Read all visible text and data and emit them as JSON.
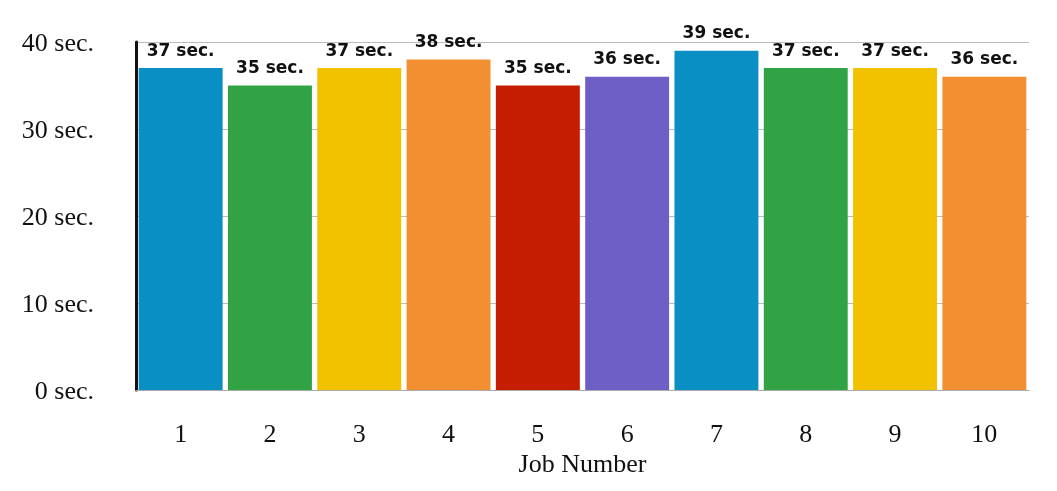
{
  "chart_data": {
    "type": "bar",
    "xlabel": "Job Number",
    "categories": [
      "1",
      "2",
      "3",
      "4",
      "5",
      "6",
      "7",
      "8",
      "9",
      "10"
    ],
    "values": [
      37,
      35,
      37,
      38,
      35,
      36,
      39,
      37,
      37,
      36
    ],
    "colors": [
      "#0a8fc4",
      "#31a345",
      "#f2c200",
      "#f29031",
      "#c41d00",
      "#6e5fc7",
      "#0a8fc4",
      "#31a345",
      "#f2c200",
      "#f29031"
    ],
    "value_labels": [
      "37 sec.",
      "35 sec.",
      "37 sec.",
      "38 sec.",
      "35 sec.",
      "36 sec.",
      "39 sec.",
      "37 sec.",
      "37 sec.",
      "36 sec."
    ],
    "ylim": [
      0,
      40
    ],
    "yticks": [
      {
        "value": 0,
        "label": "0 sec."
      },
      {
        "value": 10,
        "label": "10 sec."
      },
      {
        "value": 20,
        "label": "20 sec."
      },
      {
        "value": 30,
        "label": "30 sec."
      },
      {
        "value": 40,
        "label": "40 sec."
      }
    ],
    "grid": true
  }
}
